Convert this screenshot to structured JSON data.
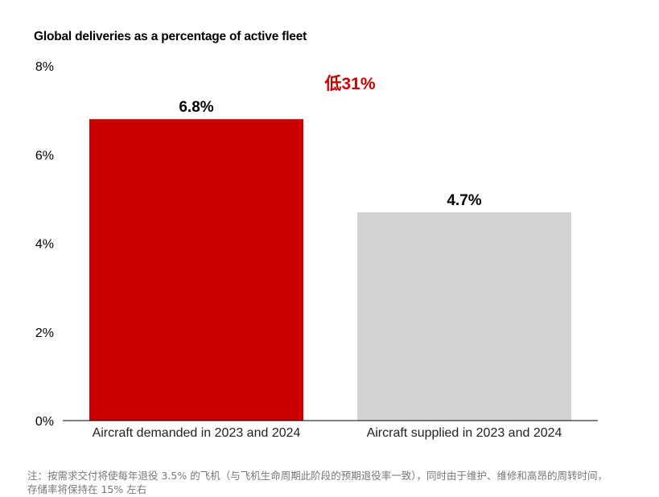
{
  "chart_data": {
    "type": "bar",
    "title": "Global deliveries as a percentage of active fleet",
    "categories": [
      "Aircraft demanded in 2023 and 2024",
      "Aircraft supplied in 2023 and 2024"
    ],
    "values": [
      6.8,
      4.7
    ],
    "data_labels": [
      "6.8%",
      "4.7%"
    ],
    "bar_colors": [
      "#cc0000",
      "#d3d3d3"
    ],
    "ylim": [
      0,
      8
    ],
    "yticks": [
      0,
      2,
      4,
      6,
      8
    ],
    "ytick_labels": [
      "0%",
      "2%",
      "4%",
      "6%",
      "8%"
    ],
    "xlabel": "",
    "ylabel": "",
    "grid": false,
    "annotation": {
      "text": "低31%",
      "color": "#cc0000"
    }
  },
  "footnote": "注：按需求交付将使每年退役 3.5% 的飞机（与飞机生命周期此阶段的预期退役率一致），同时由于维护、维修和高昂的周转时间，存储率将保持在 15% 左右"
}
